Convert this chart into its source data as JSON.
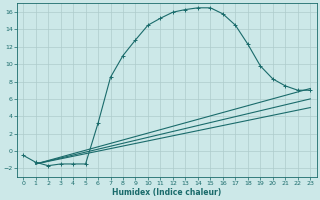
{
  "xlabel": "Humidex (Indice chaleur)",
  "bg_color": "#cce8e8",
  "grid_color": "#aecccc",
  "line_color": "#1a6b6b",
  "xlim": [
    -0.5,
    23.5
  ],
  "ylim": [
    -3.0,
    17.0
  ],
  "xticks": [
    0,
    1,
    2,
    3,
    4,
    5,
    6,
    7,
    8,
    9,
    10,
    11,
    12,
    13,
    14,
    15,
    16,
    17,
    18,
    19,
    20,
    21,
    22,
    23
  ],
  "yticks": [
    -2,
    0,
    2,
    4,
    6,
    8,
    10,
    12,
    14,
    16
  ],
  "curve1_x": [
    0,
    1,
    2,
    3,
    4,
    5,
    6,
    7,
    8,
    9,
    10,
    11,
    12,
    13,
    14,
    15,
    16,
    17,
    18,
    19,
    20,
    21,
    22,
    23
  ],
  "curve1_y": [
    -0.5,
    -1.3,
    -1.7,
    -1.5,
    -1.5,
    -1.5,
    3.2,
    8.5,
    11.0,
    12.8,
    14.5,
    15.3,
    16.0,
    16.3,
    16.5,
    16.5,
    15.8,
    14.5,
    12.3,
    9.8,
    8.3,
    7.5,
    7.0,
    7.0
  ],
  "curve2_x": [
    1,
    23
  ],
  "curve2_y": [
    -1.5,
    7.2
  ],
  "curve3_x": [
    1,
    23
  ],
  "curve3_y": [
    -1.5,
    5.0
  ],
  "curve4_x": [
    1,
    23
  ],
  "curve4_y": [
    -1.5,
    6.0
  ]
}
